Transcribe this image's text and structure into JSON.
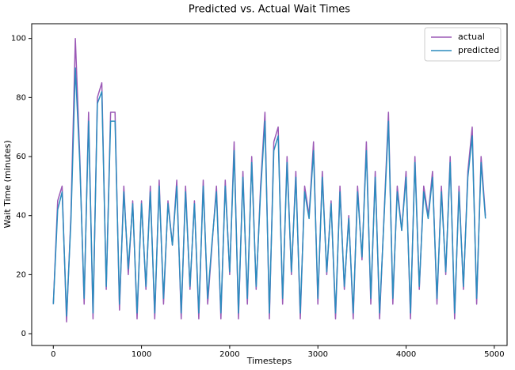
{
  "chart_data": {
    "type": "line",
    "title": "Predicted vs. Actual Wait Times",
    "xlabel": "Timesteps",
    "ylabel": "Wait Time (minutes)",
    "x": [
      0,
      50,
      100,
      150,
      200,
      250,
      300,
      350,
      400,
      450,
      500,
      550,
      600,
      650,
      700,
      750,
      800,
      850,
      900,
      950,
      1000,
      1050,
      1100,
      1150,
      1200,
      1250,
      1300,
      1350,
      1400,
      1450,
      1500,
      1550,
      1600,
      1650,
      1700,
      1750,
      1800,
      1850,
      1900,
      1950,
      2000,
      2050,
      2100,
      2150,
      2200,
      2250,
      2300,
      2350,
      2400,
      2450,
      2500,
      2550,
      2600,
      2650,
      2700,
      2750,
      2800,
      2850,
      2900,
      2950,
      3000,
      3050,
      3100,
      3150,
      3200,
      3250,
      3300,
      3350,
      3400,
      3450,
      3500,
      3550,
      3600,
      3650,
      3700,
      3750,
      3800,
      3850,
      3900,
      3950,
      4000,
      4050,
      4100,
      4150,
      4200,
      4250,
      4300,
      4350,
      4400,
      4450,
      4500,
      4550,
      4600,
      4650,
      4700,
      4750,
      4800,
      4850,
      4900
    ],
    "series": [
      {
        "name": "actual",
        "color": "#9b59b6",
        "values": [
          10,
          45,
          50,
          4,
          40,
          100,
          60,
          10,
          75,
          5,
          80,
          85,
          15,
          75,
          75,
          8,
          50,
          20,
          45,
          5,
          45,
          15,
          50,
          5,
          52,
          10,
          45,
          30,
          52,
          5,
          50,
          15,
          45,
          5,
          52,
          10,
          30,
          50,
          5,
          52,
          20,
          65,
          5,
          55,
          10,
          60,
          15,
          50,
          75,
          5,
          65,
          70,
          10,
          60,
          20,
          55,
          5,
          50,
          40,
          65,
          10,
          55,
          20,
          45,
          5,
          50,
          15,
          40,
          5,
          50,
          25,
          65,
          10,
          55,
          5,
          40,
          75,
          10,
          50,
          35,
          55,
          5,
          60,
          15,
          50,
          40,
          55,
          10,
          50,
          20,
          60,
          5,
          50,
          15,
          55,
          70,
          10,
          60,
          40
        ]
      },
      {
        "name": "predicted",
        "color": "#2b8cbe",
        "values": [
          10,
          42,
          48,
          6,
          38,
          90,
          58,
          12,
          72,
          7,
          78,
          82,
          16,
          72,
          72,
          10,
          48,
          22,
          44,
          7,
          44,
          16,
          48,
          7,
          50,
          12,
          44,
          30,
          50,
          7,
          48,
          16,
          44,
          7,
          50,
          12,
          31,
          48,
          7,
          50,
          21,
          62,
          7,
          53,
          12,
          58,
          16,
          48,
          72,
          7,
          62,
          67,
          12,
          58,
          21,
          53,
          7,
          48,
          39,
          62,
          12,
          53,
          21,
          44,
          7,
          48,
          16,
          39,
          7,
          48,
          26,
          62,
          12,
          53,
          7,
          39,
          72,
          12,
          48,
          35,
          53,
          7,
          58,
          16,
          48,
          39,
          53,
          12,
          48,
          21,
          58,
          7,
          48,
          16,
          53,
          67,
          12,
          58,
          39
        ]
      }
    ],
    "xlim": [
      -245,
      5145
    ],
    "ylim": [
      -4,
      105
    ],
    "xticks": [
      0,
      1000,
      2000,
      3000,
      4000,
      5000
    ],
    "yticks": [
      0,
      20,
      40,
      60,
      80,
      100
    ],
    "legend": "upper right"
  }
}
